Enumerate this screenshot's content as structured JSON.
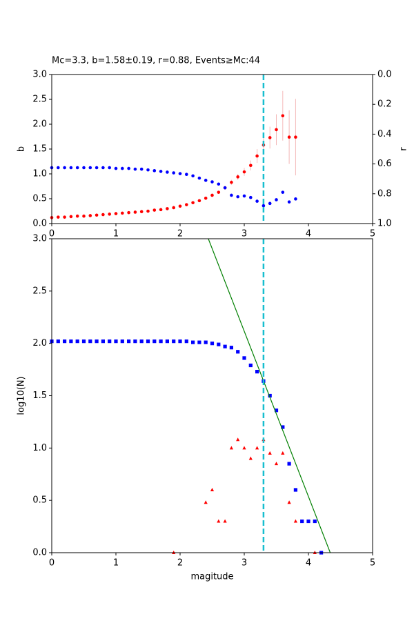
{
  "chart_data": [
    {
      "type": "scatter",
      "title": "Mc=3.3, b=1.58±0.19, r=0.88, Events≥Mc:44",
      "ylabel": "b",
      "y2label": "r",
      "xlim": [
        0,
        5
      ],
      "xticks": [
        0,
        1,
        2,
        3,
        4,
        5
      ],
      "ylim": [
        0,
        3
      ],
      "yticks": [
        {
          "value": 0,
          "label": "0.0"
        },
        {
          "value": 0.5,
          "label": "0.5"
        },
        {
          "value": 1,
          "label": "1.0"
        },
        {
          "value": 1.5,
          "label": "1.5"
        },
        {
          "value": 2,
          "label": "2.0"
        },
        {
          "value": 2.5,
          "label": "2.5"
        },
        {
          "value": 3,
          "label": "3.0"
        }
      ],
      "y2lim": [
        1,
        0
      ],
      "y2ticks": [
        {
          "value": 0,
          "label": "0.0"
        },
        {
          "value": 0.2,
          "label": "0.2"
        },
        {
          "value": 0.4,
          "label": "0.4"
        },
        {
          "value": 0.6,
          "label": "0.6"
        },
        {
          "value": 0.8,
          "label": "0.8"
        },
        {
          "value": 1,
          "label": "1.0"
        }
      ],
      "vline": 3.3,
      "vline_color": "#17becf",
      "series": [
        {
          "color": "red",
          "marker": "circle",
          "error_color": "#f4b8b8",
          "x": [
            0,
            0.1,
            0.2,
            0.3,
            0.4,
            0.5,
            0.6,
            0.7,
            0.8,
            0.9,
            1.0,
            1.1,
            1.2,
            1.3,
            1.4,
            1.5,
            1.6,
            1.7,
            1.8,
            1.9,
            2.0,
            2.1,
            2.2,
            2.3,
            2.4,
            2.5,
            2.6,
            2.7,
            2.8,
            2.9,
            3.0,
            3.1,
            3.2,
            3.3,
            3.4,
            3.5,
            3.6,
            3.7,
            3.8
          ],
          "values": [
            0.12,
            0.13,
            0.13,
            0.14,
            0.15,
            0.15,
            0.16,
            0.17,
            0.18,
            0.19,
            0.2,
            0.21,
            0.22,
            0.23,
            0.24,
            0.25,
            0.27,
            0.28,
            0.3,
            0.32,
            0.35,
            0.38,
            0.42,
            0.46,
            0.51,
            0.57,
            0.63,
            0.72,
            0.83,
            0.94,
            1.04,
            1.17,
            1.36,
            1.58,
            1.73,
            1.89,
            2.17,
            1.74,
            1.74
          ],
          "errors": [
            0.01,
            0.01,
            0.01,
            0.01,
            0.01,
            0.01,
            0.01,
            0.01,
            0.01,
            0.01,
            0.01,
            0.01,
            0.01,
            0.01,
            0.01,
            0.01,
            0.01,
            0.01,
            0.01,
            0.01,
            0.01,
            0.01,
            0.02,
            0.02,
            0.02,
            0.03,
            0.03,
            0.04,
            0.05,
            0.06,
            0.08,
            0.1,
            0.14,
            0.19,
            0.22,
            0.31,
            0.5,
            0.54,
            0.77
          ]
        },
        {
          "color": "blue",
          "marker": "circle",
          "axis": "y2",
          "x": [
            0,
            0.1,
            0.2,
            0.3,
            0.4,
            0.5,
            0.6,
            0.7,
            0.8,
            0.9,
            1.0,
            1.1,
            1.2,
            1.3,
            1.4,
            1.5,
            1.6,
            1.7,
            1.8,
            1.9,
            2.0,
            2.1,
            2.2,
            2.3,
            2.4,
            2.5,
            2.6,
            2.7,
            2.8,
            2.9,
            3.0,
            3.1,
            3.2,
            3.3,
            3.4,
            3.5,
            3.6,
            3.7,
            3.8
          ],
          "values": [
            0.625,
            0.625,
            0.625,
            0.625,
            0.625,
            0.625,
            0.625,
            0.625,
            0.625,
            0.625,
            0.63,
            0.63,
            0.63,
            0.635,
            0.635,
            0.64,
            0.645,
            0.65,
            0.655,
            0.66,
            0.665,
            0.67,
            0.68,
            0.695,
            0.71,
            0.72,
            0.735,
            0.76,
            0.81,
            0.82,
            0.815,
            0.825,
            0.85,
            0.88,
            0.865,
            0.84,
            0.79,
            0.855,
            0.835
          ]
        }
      ]
    },
    {
      "type": "scatter",
      "xlabel": "magitude",
      "ylabel": "log10(N)",
      "xlim": [
        0,
        5
      ],
      "xticks": [
        0,
        1,
        2,
        3,
        4,
        5
      ],
      "ylim": [
        0,
        3
      ],
      "yticks": [
        {
          "value": 0,
          "label": "0.0"
        },
        {
          "value": 0.5,
          "label": "0.5"
        },
        {
          "value": 1,
          "label": "1.0"
        },
        {
          "value": 1.5,
          "label": "1.5"
        },
        {
          "value": 2,
          "label": "2.0"
        },
        {
          "value": 2.5,
          "label": "2.5"
        },
        {
          "value": 3,
          "label": "3.0"
        }
      ],
      "vline": 3.3,
      "vline_color": "#17becf",
      "series": [
        {
          "color": "blue",
          "marker": "square",
          "x": [
            0,
            0.1,
            0.2,
            0.3,
            0.4,
            0.5,
            0.6,
            0.7,
            0.8,
            0.9,
            1.0,
            1.1,
            1.2,
            1.3,
            1.4,
            1.5,
            1.6,
            1.7,
            1.8,
            1.9,
            2.0,
            2.1,
            2.2,
            2.3,
            2.4,
            2.5,
            2.6,
            2.7,
            2.8,
            2.9,
            3.0,
            3.1,
            3.2,
            3.3,
            3.4,
            3.5,
            3.6,
            3.7,
            3.8,
            3.9,
            4.0,
            4.1,
            4.2
          ],
          "values": [
            2.02,
            2.02,
            2.02,
            2.02,
            2.02,
            2.02,
            2.02,
            2.02,
            2.02,
            2.02,
            2.02,
            2.02,
            2.02,
            2.02,
            2.02,
            2.02,
            2.02,
            2.02,
            2.02,
            2.02,
            2.02,
            2.02,
            2.01,
            2.01,
            2.01,
            2.0,
            1.99,
            1.97,
            1.96,
            1.92,
            1.86,
            1.79,
            1.73,
            1.64,
            1.5,
            1.36,
            1.2,
            0.85,
            0.6,
            0.3,
            0.3,
            0.3,
            0
          ]
        },
        {
          "color": "red",
          "marker": "triangle",
          "x": [
            1.9,
            2.4,
            2.5,
            2.6,
            2.7,
            2.8,
            2.9,
            3.0,
            3.1,
            3.2,
            3.3,
            3.4,
            3.5,
            3.6,
            3.7,
            3.8,
            4.1
          ],
          "values": [
            0,
            0.48,
            0.6,
            0.3,
            0.3,
            1.0,
            1.08,
            1.0,
            0.9,
            1.0,
            1.08,
            0.95,
            0.85,
            0.95,
            0.48,
            0.3,
            0
          ]
        },
        {
          "color": "green",
          "marker": "line",
          "x": [
            2.44,
            4.34
          ],
          "values": [
            3,
            0
          ]
        }
      ]
    }
  ]
}
